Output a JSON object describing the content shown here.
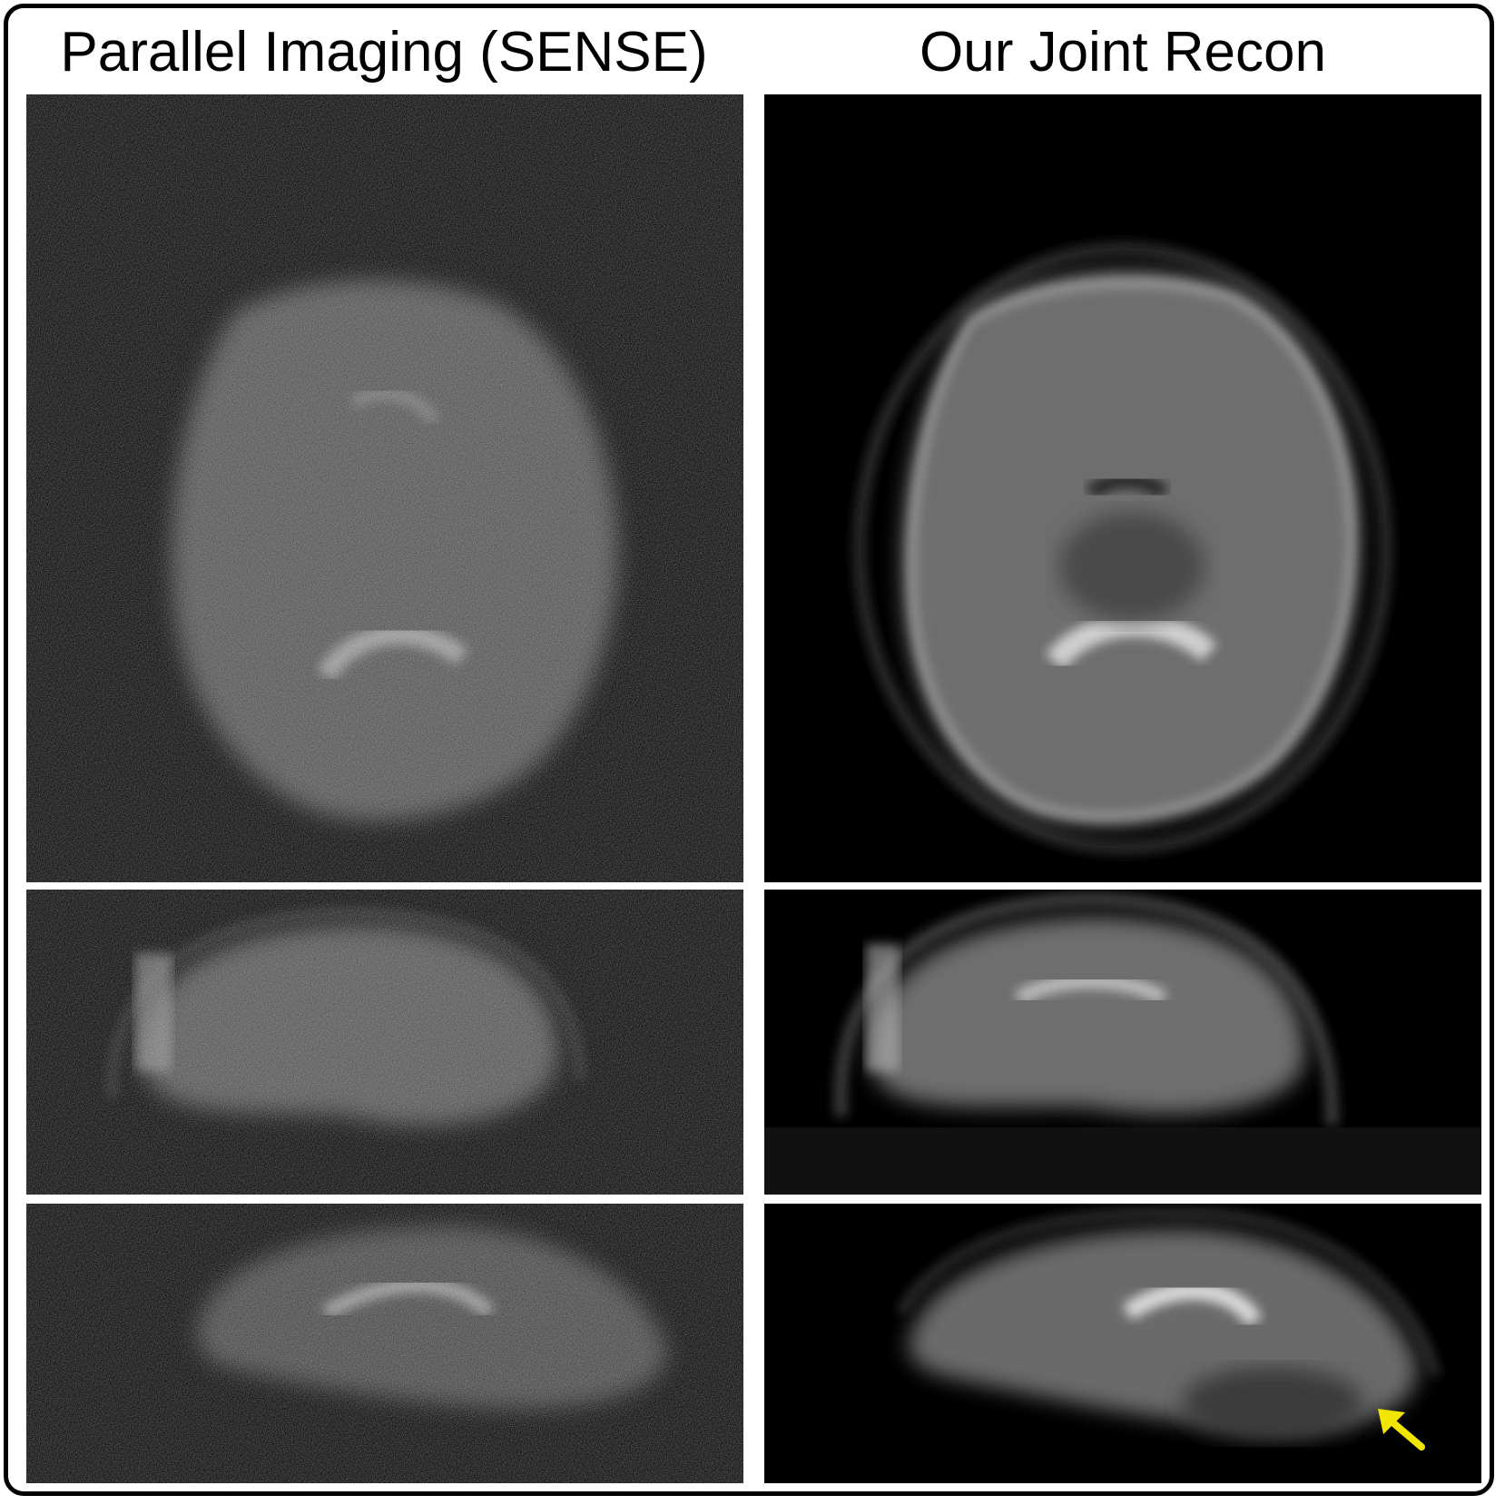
{
  "columns": [
    {
      "title": "Parallel Imaging (SENSE)"
    },
    {
      "title": "Our Joint Recon"
    }
  ],
  "views": [
    "axial",
    "coronal",
    "sagittal"
  ],
  "annotation": {
    "icon": "arrow-icon",
    "color": "#f2e600"
  }
}
